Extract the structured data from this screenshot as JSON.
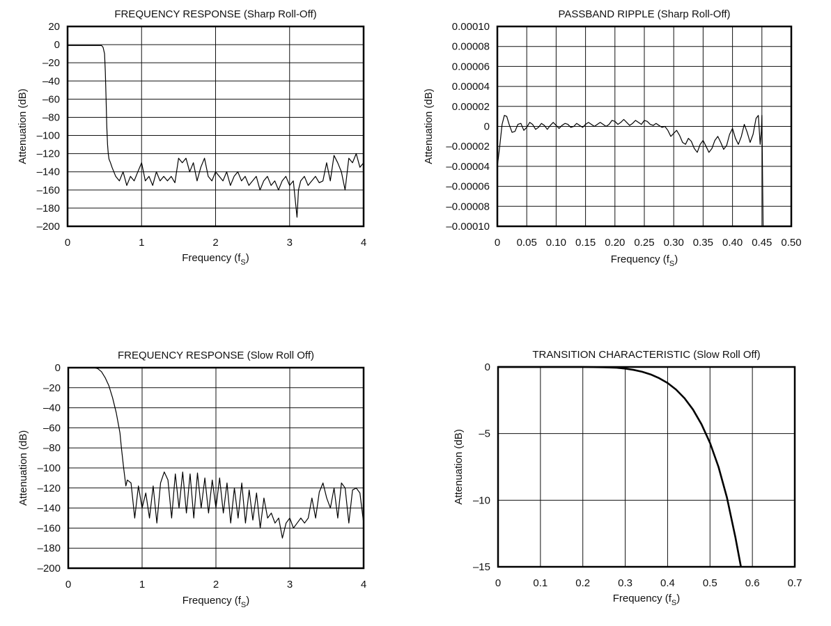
{
  "chart_data": [
    {
      "id": "fr_sharp",
      "type": "line",
      "title": "FREQUENCY RESPONSE (Sharp Roll-Off)",
      "xlabel": "Frequency (f",
      "xlabel_sub": "S",
      "xlabel_close": ")",
      "ylabel": "Attenuation (dB)",
      "xlim": [
        0,
        4
      ],
      "ylim": [
        -200,
        20
      ],
      "xticks": [
        0,
        1,
        2,
        3,
        4
      ],
      "xtick_labels": [
        "0",
        "1",
        "2",
        "3",
        "4"
      ],
      "yticks": [
        20,
        0,
        -20,
        -40,
        -60,
        -80,
        -100,
        -120,
        -140,
        -160,
        -180,
        -200
      ],
      "ytick_labels": [
        "20",
        "0",
        "–20",
        "–40",
        "–60",
        "–80",
        "–100",
        "–120",
        "–140",
        "–160",
        "–180",
        "–200"
      ],
      "grid": true,
      "series": [
        {
          "x": [
            0,
            0.1,
            0.2,
            0.3,
            0.4,
            0.46,
            0.48,
            0.5,
            0.51,
            0.52,
            0.53,
            0.54,
            0.55,
            0.56,
            0.58,
            0.6,
            0.65,
            0.7,
            0.75,
            0.8,
            0.85,
            0.9,
            0.95,
            1.0,
            1.05,
            1.1,
            1.15,
            1.2,
            1.25,
            1.3,
            1.35,
            1.4,
            1.45,
            1.5,
            1.55,
            1.6,
            1.65,
            1.7,
            1.75,
            1.8,
            1.85,
            1.9,
            1.95,
            2.0,
            2.05,
            2.1,
            2.15,
            2.2,
            2.25,
            2.3,
            2.35,
            2.4,
            2.45,
            2.5,
            2.55,
            2.6,
            2.65,
            2.7,
            2.75,
            2.8,
            2.85,
            2.9,
            2.95,
            3.0,
            3.05,
            3.1,
            3.12,
            3.15,
            3.2,
            3.25,
            3.3,
            3.35,
            3.4,
            3.45,
            3.5,
            3.55,
            3.6,
            3.65,
            3.7,
            3.75,
            3.8,
            3.85,
            3.9,
            3.95,
            4.0
          ],
          "y": [
            -1,
            -1,
            -1,
            -1,
            -1,
            -1,
            -3,
            -10,
            -30,
            -60,
            -90,
            -110,
            -120,
            -126,
            -130,
            -135,
            -145,
            -150,
            -140,
            -155,
            -145,
            -150,
            -140,
            -130,
            -150,
            -145,
            -155,
            -140,
            -150,
            -145,
            -150,
            -145,
            -152,
            -125,
            -130,
            -125,
            -140,
            -130,
            -150,
            -135,
            -125,
            -145,
            -150,
            -140,
            -145,
            -150,
            -140,
            -155,
            -145,
            -140,
            -150,
            -145,
            -155,
            -150,
            -145,
            -160,
            -150,
            -145,
            -155,
            -150,
            -160,
            -150,
            -145,
            -155,
            -150,
            -190,
            -160,
            -150,
            -145,
            -155,
            -150,
            -145,
            -152,
            -150,
            -130,
            -150,
            -122,
            -130,
            -140,
            -160,
            -125,
            -130,
            -120,
            -135,
            -130
          ]
        }
      ]
    },
    {
      "id": "ripple_sharp",
      "type": "line",
      "title": "PASSBAND RIPPLE (Sharp Roll-Off)",
      "xlabel": "Frequency (f",
      "xlabel_sub": "S",
      "xlabel_close": ")",
      "ylabel": "Attenuation (dB)",
      "xlim": [
        0,
        0.5
      ],
      "ylim": [
        -0.0001,
        0.0001
      ],
      "xticks": [
        0,
        0.05,
        0.1,
        0.15,
        0.2,
        0.25,
        0.3,
        0.35,
        0.4,
        0.45,
        0.5
      ],
      "xtick_labels": [
        "0",
        "0.05",
        "0.10",
        "0.15",
        "0.20",
        "0.25",
        "0.30",
        "0.35",
        "0.40",
        "0.45",
        "0.50"
      ],
      "yticks": [
        0.0001,
        8e-05,
        6e-05,
        4e-05,
        2e-05,
        0,
        -2e-05,
        -4e-05,
        -6e-05,
        -8e-05,
        -0.0001
      ],
      "ytick_labels": [
        "0.00010",
        "0.00008",
        "0.00006",
        "0.00004",
        "0.00002",
        "0",
        "–0.00002",
        "–0.00004",
        "–0.00006",
        "–0.00008",
        "–0.00010"
      ],
      "grid": true,
      "series": [
        {
          "x": [
            0,
            0.004,
            0.008,
            0.012,
            0.016,
            0.02,
            0.025,
            0.03,
            0.035,
            0.04,
            0.045,
            0.05,
            0.055,
            0.06,
            0.065,
            0.07,
            0.075,
            0.08,
            0.085,
            0.09,
            0.095,
            0.1,
            0.105,
            0.11,
            0.115,
            0.12,
            0.125,
            0.13,
            0.135,
            0.14,
            0.145,
            0.15,
            0.155,
            0.16,
            0.165,
            0.17,
            0.175,
            0.18,
            0.185,
            0.19,
            0.195,
            0.2,
            0.205,
            0.21,
            0.215,
            0.22,
            0.225,
            0.23,
            0.235,
            0.24,
            0.245,
            0.25,
            0.255,
            0.26,
            0.265,
            0.27,
            0.275,
            0.28,
            0.285,
            0.29,
            0.295,
            0.3,
            0.305,
            0.31,
            0.315,
            0.32,
            0.325,
            0.33,
            0.335,
            0.34,
            0.345,
            0.35,
            0.355,
            0.36,
            0.365,
            0.37,
            0.375,
            0.38,
            0.385,
            0.39,
            0.395,
            0.4,
            0.405,
            0.41,
            0.415,
            0.42,
            0.425,
            0.43,
            0.435,
            0.44,
            0.444,
            0.447,
            0.449,
            0.45,
            0.451,
            0.452
          ],
          "y": [
            -4e-05,
            -2e-05,
            2e-06,
            1.1e-05,
            1e-05,
            2e-06,
            -6e-06,
            -5e-06,
            2e-06,
            3e-06,
            -4e-06,
            -1e-06,
            4e-06,
            2e-06,
            -3e-06,
            -1e-06,
            3e-06,
            1e-06,
            -3e-06,
            1e-06,
            4e-06,
            1e-06,
            -2e-06,
            1e-06,
            3e-06,
            2e-06,
            -1e-06,
            0,
            3e-06,
            1e-06,
            -1e-06,
            2e-06,
            4e-06,
            2e-06,
            0,
            2e-06,
            4e-06,
            2e-06,
            0,
            2e-06,
            6e-06,
            5e-06,
            2e-06,
            4e-06,
            7e-06,
            4e-06,
            1e-06,
            3e-06,
            6e-06,
            4e-06,
            2e-06,
            6e-06,
            5e-06,
            2e-06,
            1e-06,
            3e-06,
            1e-06,
            -1e-06,
            0,
            -4e-06,
            -1e-05,
            -7e-06,
            -4e-06,
            -9e-06,
            -1.6e-05,
            -1.8e-05,
            -1.2e-05,
            -1.5e-05,
            -2.2e-05,
            -2.6e-05,
            -1.8e-05,
            -1.4e-05,
            -2e-05,
            -2.6e-05,
            -2.2e-05,
            -1.4e-05,
            -1e-05,
            -1.6e-05,
            -2.3e-05,
            -1.9e-05,
            -8e-06,
            -2e-06,
            -1.2e-05,
            -1.8e-05,
            -1e-05,
            2e-06,
            -6e-06,
            -1.6e-05,
            -8e-06,
            8e-06,
            1.1e-05,
            -1.8e-05,
            -5e-06,
            1.1e-05,
            -4e-05,
            -0.0001
          ]
        }
      ]
    },
    {
      "id": "fr_slow",
      "type": "line",
      "title": "FREQUENCY RESPONSE (Slow Roll Off)",
      "xlabel": "Frequency (f",
      "xlabel_sub": "S",
      "xlabel_close": ")",
      "ylabel": "Attenuation (dB)",
      "xlim": [
        0,
        4
      ],
      "ylim": [
        -200,
        0
      ],
      "xticks": [
        0,
        1,
        2,
        3,
        4
      ],
      "xtick_labels": [
        "0",
        "1",
        "2",
        "3",
        "4"
      ],
      "yticks": [
        0,
        -20,
        -40,
        -60,
        -80,
        -100,
        -120,
        -140,
        -160,
        -180,
        -200
      ],
      "ytick_labels": [
        "0",
        "–20",
        "–40",
        "–60",
        "–80",
        "–100",
        "–120",
        "–140",
        "–160",
        "–180",
        "–200"
      ],
      "grid": true,
      "series": [
        {
          "x": [
            0,
            0.1,
            0.2,
            0.3,
            0.35,
            0.4,
            0.45,
            0.5,
            0.55,
            0.6,
            0.65,
            0.7,
            0.72,
            0.75,
            0.78,
            0.8,
            0.85,
            0.9,
            0.95,
            1.0,
            1.05,
            1.1,
            1.15,
            1.2,
            1.25,
            1.3,
            1.35,
            1.4,
            1.45,
            1.5,
            1.55,
            1.6,
            1.65,
            1.7,
            1.75,
            1.8,
            1.85,
            1.9,
            1.95,
            2.0,
            2.05,
            2.1,
            2.15,
            2.2,
            2.25,
            2.3,
            2.35,
            2.4,
            2.45,
            2.5,
            2.55,
            2.6,
            2.65,
            2.7,
            2.75,
            2.8,
            2.85,
            2.9,
            2.95,
            3.0,
            3.05,
            3.1,
            3.15,
            3.2,
            3.25,
            3.3,
            3.35,
            3.4,
            3.45,
            3.5,
            3.55,
            3.6,
            3.65,
            3.7,
            3.75,
            3.8,
            3.85,
            3.9,
            3.95,
            4.0
          ],
          "y": [
            0,
            0,
            0,
            0,
            0,
            -1,
            -4,
            -10,
            -18,
            -30,
            -45,
            -65,
            -80,
            -100,
            -118,
            -112,
            -115,
            -150,
            -118,
            -140,
            -125,
            -150,
            -118,
            -155,
            -115,
            -104,
            -112,
            -150,
            -106,
            -140,
            -104,
            -145,
            -106,
            -150,
            -105,
            -140,
            -110,
            -145,
            -112,
            -140,
            -110,
            -145,
            -115,
            -155,
            -120,
            -150,
            -115,
            -155,
            -122,
            -152,
            -125,
            -160,
            -130,
            -150,
            -145,
            -155,
            -150,
            -170,
            -155,
            -150,
            -160,
            -155,
            -150,
            -155,
            -150,
            -130,
            -150,
            -124,
            -115,
            -130,
            -140,
            -120,
            -150,
            -115,
            -120,
            -155,
            -122,
            -120,
            -125,
            -155
          ]
        }
      ]
    },
    {
      "id": "transition_slow",
      "type": "line",
      "title": "TRANSITION CHARACTERISTIC (Slow Roll Off)",
      "xlabel": "Frequency (f",
      "xlabel_sub": "S",
      "xlabel_close": ")",
      "ylabel": "Attenuation (dB)",
      "xlim": [
        0,
        0.7
      ],
      "ylim": [
        -15,
        0
      ],
      "xticks": [
        0,
        0.1,
        0.2,
        0.3,
        0.4,
        0.5,
        0.6,
        0.7
      ],
      "xtick_labels": [
        "0",
        "0.1",
        "0.2",
        "0.3",
        "0.4",
        "0.5",
        "0.6",
        "0.7"
      ],
      "yticks": [
        0,
        -5,
        -10,
        -15
      ],
      "ytick_labels": [
        "0",
        "–5",
        "–10",
        "–15"
      ],
      "grid": true,
      "series": [
        {
          "x": [
            0,
            0.2,
            0.25,
            0.28,
            0.3,
            0.32,
            0.34,
            0.36,
            0.38,
            0.4,
            0.42,
            0.44,
            0.46,
            0.48,
            0.5,
            0.52,
            0.54,
            0.56,
            0.573
          ],
          "y": [
            0,
            0,
            -0.02,
            -0.06,
            -0.12,
            -0.22,
            -0.36,
            -0.56,
            -0.84,
            -1.2,
            -1.7,
            -2.35,
            -3.2,
            -4.3,
            -5.7,
            -7.5,
            -9.8,
            -12.8,
            -15
          ]
        }
      ]
    }
  ]
}
